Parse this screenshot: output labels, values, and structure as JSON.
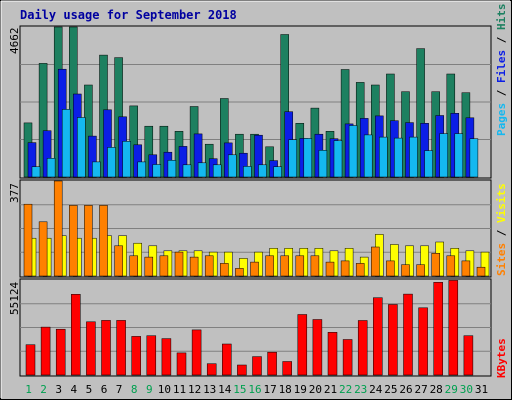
{
  "chart_data": [
    {
      "type": "bar",
      "title": "Daily usage for September 2018",
      "categories": [
        "1",
        "2",
        "3",
        "4",
        "5",
        "6",
        "7",
        "8",
        "9",
        "10",
        "11",
        "12",
        "13",
        "14",
        "15",
        "16",
        "17",
        "18",
        "19",
        "20",
        "21",
        "22",
        "23",
        "24",
        "25",
        "26",
        "27",
        "28",
        "29",
        "30",
        "31"
      ],
      "weekend_days": [
        "1",
        "2",
        "8",
        "9",
        "15",
        "16",
        "22",
        "23",
        "29",
        "30"
      ],
      "ymax_label": "4662",
      "ylim": [
        0,
        4662
      ],
      "grid": true,
      "series": [
        {
          "name": "Hits",
          "color": "#1d8060",
          "values": [
            1680,
            3530,
            4662,
            4662,
            2860,
            3790,
            3710,
            2210,
            1580,
            1580,
            1420,
            2190,
            1020,
            2440,
            1330,
            1330,
            940,
            4430,
            1670,
            2140,
            1420,
            3340,
            2940,
            2860,
            3200,
            2650,
            3990,
            2650,
            3200,
            2620,
            0
          ]
        },
        {
          "name": "Files",
          "color": "#0b1ee6",
          "values": [
            1070,
            1440,
            3350,
            2580,
            1270,
            2090,
            1870,
            1000,
            690,
            770,
            950,
            1340,
            570,
            1060,
            740,
            1300,
            510,
            2030,
            1200,
            1330,
            1190,
            1650,
            1820,
            1900,
            1750,
            1690,
            1670,
            1910,
            1980,
            1840,
            0
          ]
        },
        {
          "name": "Pages",
          "color": "#14b8f0",
          "values": [
            320,
            580,
            2100,
            1850,
            470,
            920,
            1110,
            470,
            390,
            520,
            380,
            440,
            380,
            690,
            330,
            380,
            320,
            1160,
            1200,
            830,
            1130,
            1600,
            1310,
            1240,
            1210,
            1240,
            820,
            1350,
            1350,
            1190,
            0
          ]
        }
      ]
    },
    {
      "type": "bar",
      "ymax_label": "377",
      "ylim": [
        0,
        377
      ],
      "grid": true,
      "series": [
        {
          "name": "Visits",
          "color": "#ffff00",
          "values": [
            150,
            150,
            160,
            150,
            150,
            160,
            160,
            130,
            120,
            100,
            100,
            100,
            95,
            95,
            70,
            95,
            110,
            110,
            110,
            110,
            100,
            110,
            75,
            165,
            125,
            120,
            120,
            135,
            110,
            100,
            95
          ]
        },
        {
          "name": "Sites",
          "color": "#ff8000",
          "values": [
            285,
            215,
            377,
            280,
            280,
            280,
            120,
            80,
            75,
            80,
            95,
            75,
            80,
            50,
            30,
            55,
            80,
            80,
            80,
            80,
            55,
            60,
            50,
            115,
            60,
            45,
            45,
            90,
            80,
            60,
            35
          ]
        }
      ]
    },
    {
      "type": "bar",
      "ymax_label": "55124",
      "ylim": [
        0,
        55124
      ],
      "grid": true,
      "series": [
        {
          "name": "KBytes",
          "color": "#ff0000",
          "values": [
            17580,
            27790,
            26560,
            46830,
            30880,
            31690,
            31690,
            22380,
            22790,
            21130,
            12830,
            26150,
            6570,
            17960,
            5830,
            10700,
            13220,
            7830,
            35110,
            32180,
            24780,
            20610,
            31610,
            44860,
            40930,
            46970,
            38970,
            53800,
            54910,
            22790,
            0
          ]
        }
      ]
    }
  ]
}
